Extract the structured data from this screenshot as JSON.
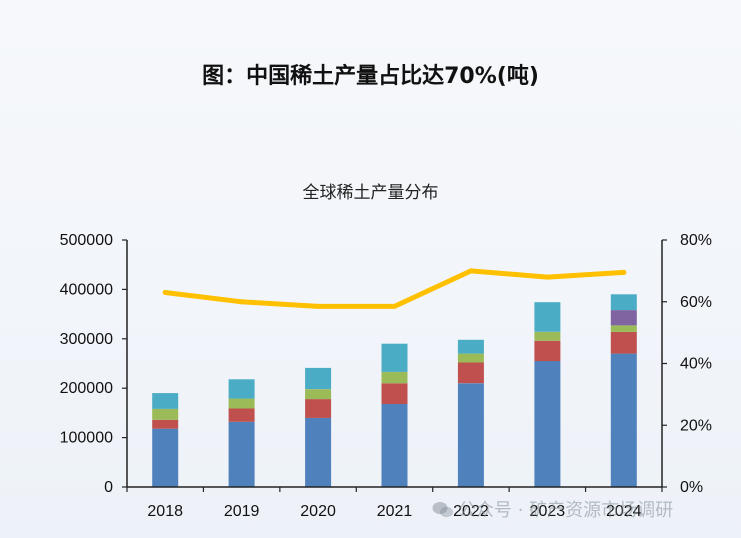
{
  "page": {
    "title": "图：中国稀土产量占比达70%(吨)"
  },
  "watermark": {
    "text": "公众号 · 矿产资源市场调研"
  },
  "chart_data": {
    "type": "bar",
    "title": "全球稀土产量分布",
    "stacked": true,
    "categories": [
      "2018",
      "2019",
      "2020",
      "2021",
      "2022",
      "2023",
      "2024"
    ],
    "series": [
      {
        "values": [
          118000,
          132000,
          140000,
          168000,
          210000,
          255000,
          270000
        ],
        "color": "#4f81bd"
      },
      {
        "values": [
          18000,
          27000,
          38000,
          42000,
          42000,
          41000,
          44000
        ],
        "color": "#c0504d"
      },
      {
        "values": [
          22000,
          20000,
          20000,
          23000,
          18000,
          18000,
          13000
        ],
        "color": "#9bbb59"
      },
      {
        "values": [
          0,
          0,
          0,
          0,
          0,
          0,
          31000
        ],
        "color": "#8064a2"
      },
      {
        "values": [
          32000,
          39000,
          43000,
          57000,
          28000,
          60000,
          32000
        ],
        "color": "#4bacc6"
      }
    ],
    "line_series": {
      "axis": "right",
      "values": [
        0.63,
        0.6,
        0.585,
        0.585,
        0.7,
        0.68,
        0.695
      ],
      "color": "#ffc000"
    },
    "y_left": {
      "min": 0,
      "max": 500000,
      "ticks": [
        "0",
        "100000",
        "200000",
        "300000",
        "400000",
        "500000"
      ]
    },
    "y_right": {
      "min": 0,
      "max": 0.8,
      "ticks": [
        "0%",
        "20%",
        "40%",
        "60%",
        "80%"
      ]
    },
    "grid": false,
    "legend": "none"
  }
}
